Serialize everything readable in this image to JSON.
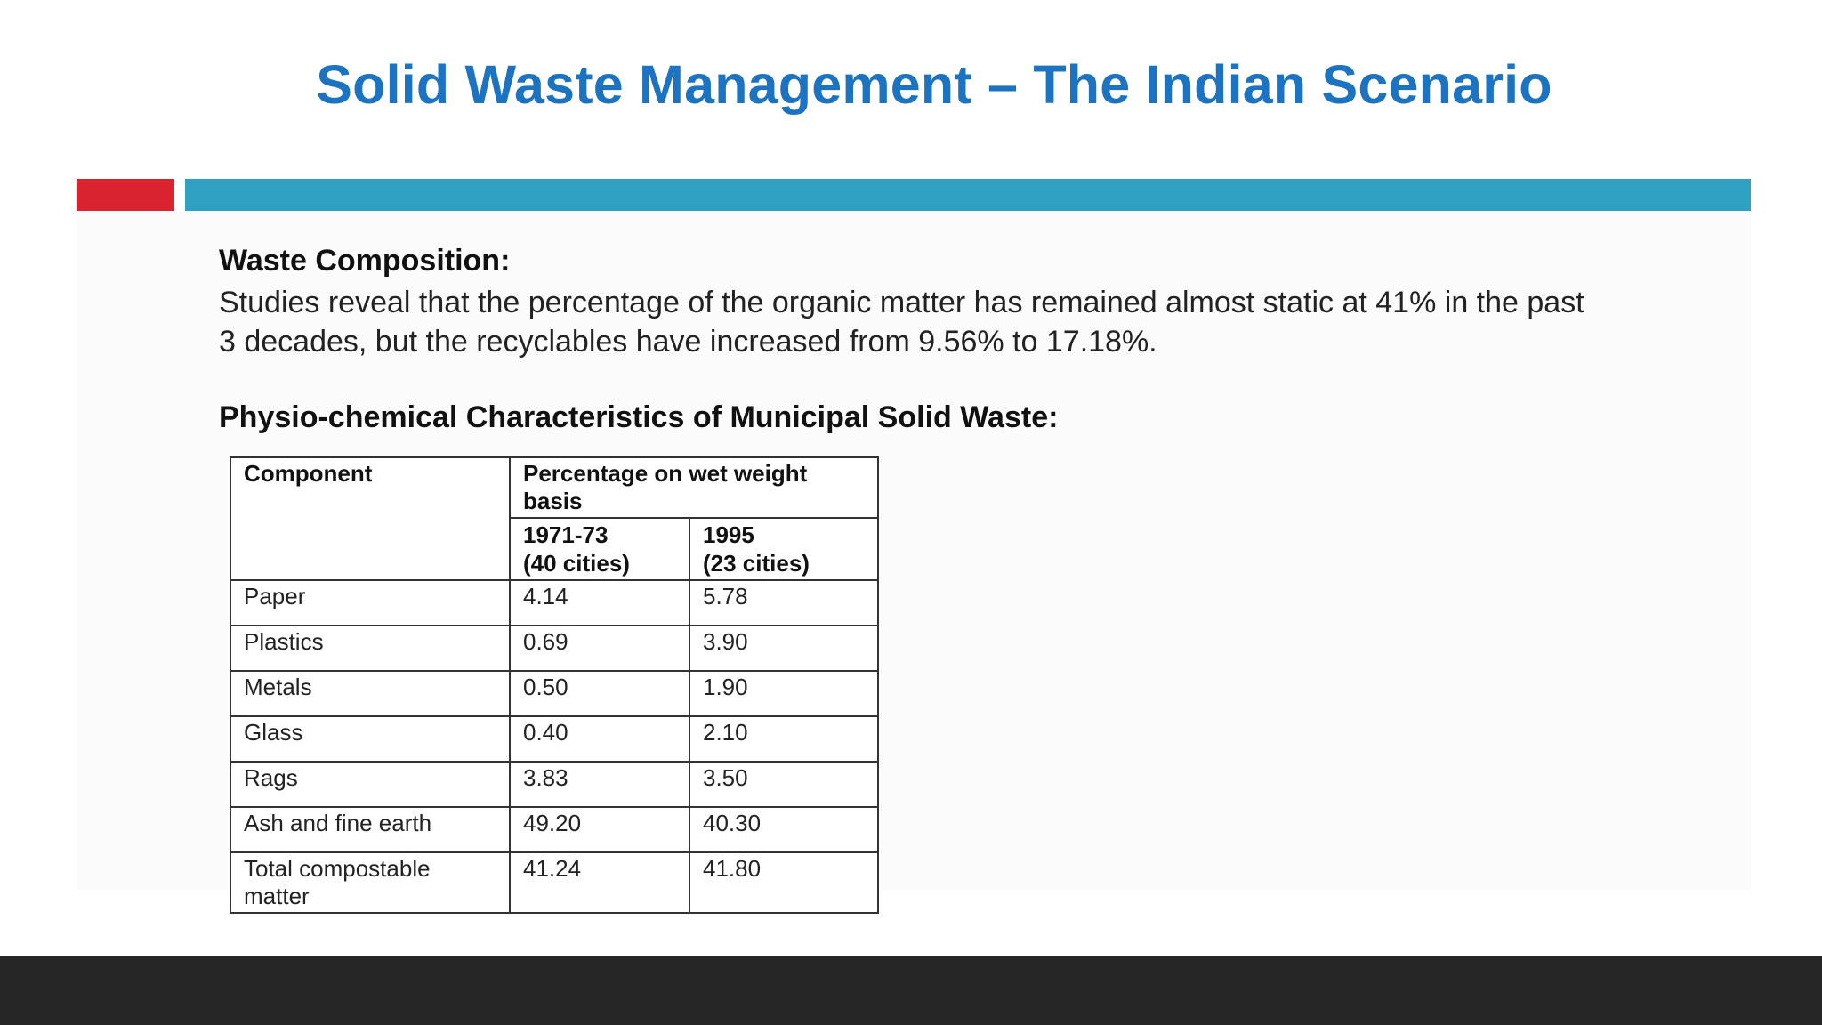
{
  "slide": {
    "title": "Solid Waste Management – The Indian Scenario",
    "section1_heading": "Waste Composition:",
    "section1_text_line1": "Studies reveal that the percentage of the organic matter has remained almost static at 41% in the past",
    "section1_text_line2": "3 decades, but the recyclables have increased from 9.56% to 17.18%.",
    "section2_heading": "Physio-chemical Characteristics of Municipal Solid Waste:"
  },
  "colors": {
    "title": "#1b73c1",
    "bar_red": "#d92330",
    "bar_teal": "#31a1c3",
    "bottom_bar": "#262626"
  },
  "table": {
    "component_header": "Component",
    "group_header": "Percentage on wet weight basis",
    "col1_line1": "1971-73",
    "col1_line2": "(40 cities)",
    "col2_line1": "1995",
    "col2_line2": "(23 cities)",
    "rows": [
      {
        "component": "Paper",
        "v1971": "4.14",
        "v1995": "5.78"
      },
      {
        "component": "Plastics",
        "v1971": "0.69",
        "v1995": "3.90"
      },
      {
        "component": "Metals",
        "v1971": "0.50",
        "v1995": "1.90"
      },
      {
        "component": "Glass",
        "v1971": "0.40",
        "v1995": "2.10"
      },
      {
        "component": "Rags",
        "v1971": "3.83",
        "v1995": "3.50"
      },
      {
        "component": "Ash and fine earth",
        "v1971": "49.20",
        "v1995": "40.30"
      },
      {
        "component": "Total compostable matter",
        "v1971": "41.24",
        "v1995": "41.80"
      }
    ]
  }
}
